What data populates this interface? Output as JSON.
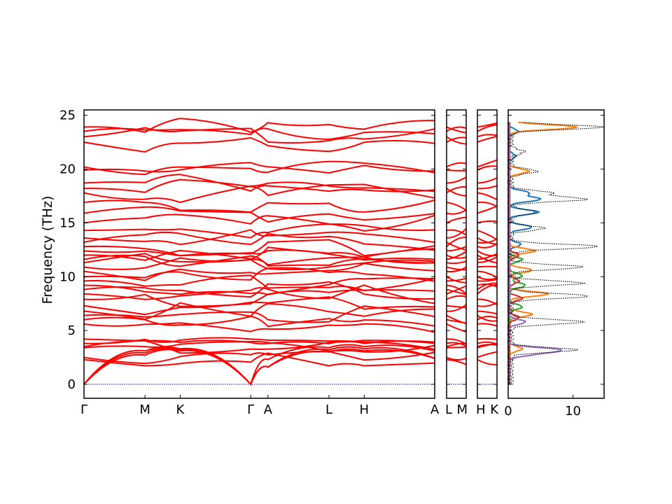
{
  "figure": {
    "ylabel": "Frequency (THz)"
  },
  "chart_data": [
    {
      "type": "line",
      "description_kind": "phonon-band-structure",
      "ylabel": "Frequency (THz)",
      "ylim": [
        -1.3,
        25.5
      ],
      "yticks": [
        0,
        5,
        10,
        15,
        20,
        25
      ],
      "grid": false,
      "legend": "none",
      "band_color": "#ff0000",
      "zero_line_color": "#0000cc",
      "segments": [
        {
          "path": [
            "Γ",
            "M",
            "K",
            "Γ",
            "A",
            "L",
            "H",
            "A"
          ],
          "tick_labels": [
            "Γ",
            "M",
            "K",
            "Γ",
            "A",
            "L",
            "H",
            "A"
          ],
          "k_positions": [
            0,
            0.577,
            0.91,
            1.577,
            1.74,
            2.317,
            2.65,
            3.317
          ]
        },
        {
          "path": [
            "L",
            "M"
          ],
          "tick_labels": [
            "L",
            "M"
          ],
          "k_positions": [
            0,
            0.163
          ]
        },
        {
          "path": [
            "H",
            "K"
          ],
          "tick_labels": [
            "H",
            "K"
          ],
          "k_positions": [
            0,
            0.163
          ]
        }
      ],
      "acoustic_branches": {
        "gamma_frequency": 0,
        "M_frequencies": [
          2.7,
          2.9,
          3.1
        ],
        "K_frequencies": [
          3.1,
          3.2,
          3.3
        ],
        "A_frequencies": [
          1.6,
          1.6,
          2.3
        ],
        "L_frequencies": [
          3.0,
          3.2,
          3.4
        ],
        "H_frequencies": [
          3.1,
          3.3,
          3.5
        ]
      },
      "low_optical_band_frequencies": [
        2.3,
        2.5,
        3.4,
        3.5,
        3.8,
        4.2
      ],
      "optical_band_frequencies_at_gamma": [
        5.6,
        6.0,
        6.4,
        6.8,
        7.3,
        7.9,
        8.4,
        8.8,
        9.2,
        9.6,
        10.0,
        10.5,
        10.9,
        11.3,
        11.6,
        12.0,
        12.4,
        12.8,
        13.2,
        13.6,
        14.3,
        15.0,
        15.9,
        16.9,
        17.8,
        18.2,
        18.7,
        19.9,
        20.2,
        22.5,
        23.0,
        23.5,
        23.9
      ]
    },
    {
      "type": "line",
      "description_kind": "phonon-density-of-states",
      "xlabel": "",
      "xticks": [
        0,
        10
      ],
      "xlim": [
        0,
        14.8
      ],
      "ylim": [
        -1.3,
        25.5
      ],
      "grid": false,
      "legend": "none",
      "total_dos_style": "black dotted",
      "series": [
        {
          "color": "#1f77b4",
          "peaks": [
            [
              13.0,
              1.8
            ],
            [
              14.6,
              3.5
            ],
            [
              16.0,
              4.5
            ],
            [
              17.2,
              4.8
            ],
            [
              17.8,
              3.0
            ],
            [
              21.2,
              1.0
            ],
            [
              23.5,
              1.4
            ]
          ]
        },
        {
          "color": "#ff7f0e",
          "peaks": [
            [
              3.3,
              2.0
            ],
            [
              6.5,
              3.5
            ],
            [
              8.4,
              6.0
            ],
            [
              10.6,
              3.5
            ],
            [
              12.4,
              4.0
            ],
            [
              19.8,
              3.0
            ],
            [
              23.9,
              10.5
            ]
          ]
        },
        {
          "color": "#2ca02c",
          "peaks": [
            [
              7.2,
              2.0
            ],
            [
              9.2,
              2.5
            ],
            [
              10.1,
              2.0
            ],
            [
              11.6,
              2.0
            ]
          ]
        },
        {
          "color": "#d62728",
          "peaks": [
            [
              6.2,
              1.5
            ],
            [
              8.0,
              2.0
            ],
            [
              9.6,
              1.5
            ],
            [
              12.0,
              1.5
            ]
          ]
        },
        {
          "color": "#9467bd",
          "peaks": [
            [
              3.2,
              7.5
            ],
            [
              2.8,
              3.0
            ],
            [
              5.8,
              2.5
            ]
          ]
        },
        {
          "color": "#000000",
          "peaks": [
            [
              3.2,
              10.0
            ],
            [
              5.8,
              11.0
            ],
            [
              8.2,
              12.0
            ],
            [
              9.4,
              11.0
            ],
            [
              10.9,
              11.0
            ],
            [
              12.8,
              13.5
            ],
            [
              14.5,
              5.0
            ],
            [
              16.0,
              4.0
            ],
            [
              17.2,
              11.5
            ],
            [
              17.8,
              6.0
            ],
            [
              19.8,
              4.0
            ],
            [
              21.6,
              2.0
            ],
            [
              23.9,
              14.0
            ]
          ]
        }
      ]
    }
  ]
}
